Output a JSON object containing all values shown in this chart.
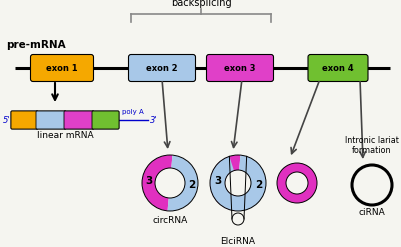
{
  "bg_color": "#f5f5f0",
  "pre_mrna_label": "pre-mRNA",
  "linear_mrna_label": "linear mRNA",
  "backsplicing_label": "backsplicing",
  "intronic_label": "Intronic lariat\nformation",
  "circrna_label": "circRNA",
  "eicirna_label": "EIciRNA",
  "cirna_label": "ciRNA",
  "exon_colors": [
    "#f5a800",
    "#a8c8e8",
    "#e040c8",
    "#70c030"
  ],
  "exon_labels": [
    "exon 1",
    "exon 2",
    "exon 3",
    "exon 4"
  ],
  "magenta": "#e030c0",
  "light_blue": "#a8c8e8",
  "black": "#000000",
  "poly_a_color": "#0000cc",
  "brace_color": "#888888",
  "arrow_color": "#444444"
}
